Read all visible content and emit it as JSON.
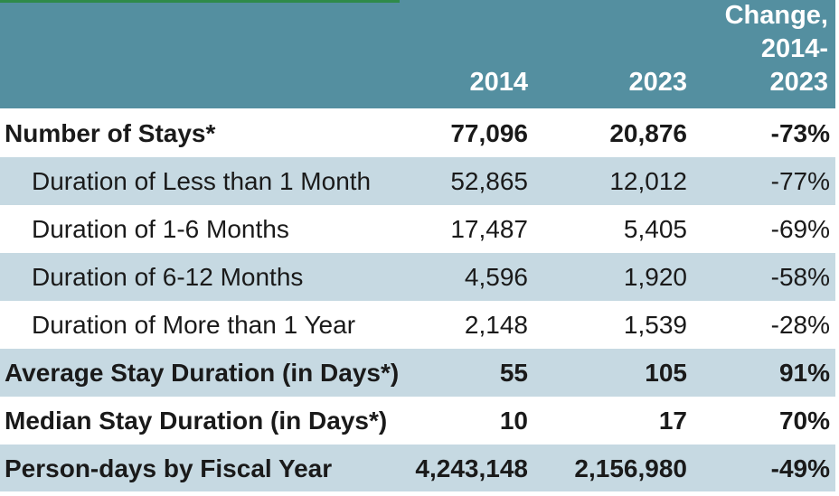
{
  "header": {
    "col_2014": "2014",
    "col_2023": "2023",
    "change_line1": "Change,",
    "change_line2": "2014-",
    "change_line3": "2023"
  },
  "rows": [
    {
      "label": "Number of Stays*",
      "v2014": "77,096",
      "v2023": "20,876",
      "change": "-73%"
    },
    {
      "label": "Duration of Less than 1 Month",
      "v2014": "52,865",
      "v2023": "12,012",
      "change": "-77%"
    },
    {
      "label": "Duration of 1-6 Months",
      "v2014": "17,487",
      "v2023": "5,405",
      "change": "-69%"
    },
    {
      "label": "Duration of 6-12 Months",
      "v2014": "4,596",
      "v2023": "1,920",
      "change": "-58%"
    },
    {
      "label": "Duration of More than 1 Year",
      "v2014": "2,148",
      "v2023": "1,539",
      "change": "-28%"
    },
    {
      "label": "Average Stay Duration (in Days*)",
      "v2014": "55",
      "v2023": "105",
      "change": "91%"
    },
    {
      "label": "Median Stay Duration (in Days*)",
      "v2014": "10",
      "v2023": "17",
      "change": "70%"
    },
    {
      "label": "Person-days by Fiscal Year",
      "v2014": "4,243,148",
      "v2023": "2,156,980",
      "change": "-49%"
    }
  ],
  "colors": {
    "header_bg": "#548fa0",
    "alt_row_bg": "#c6d9e2",
    "header_text": "#ffffff"
  }
}
